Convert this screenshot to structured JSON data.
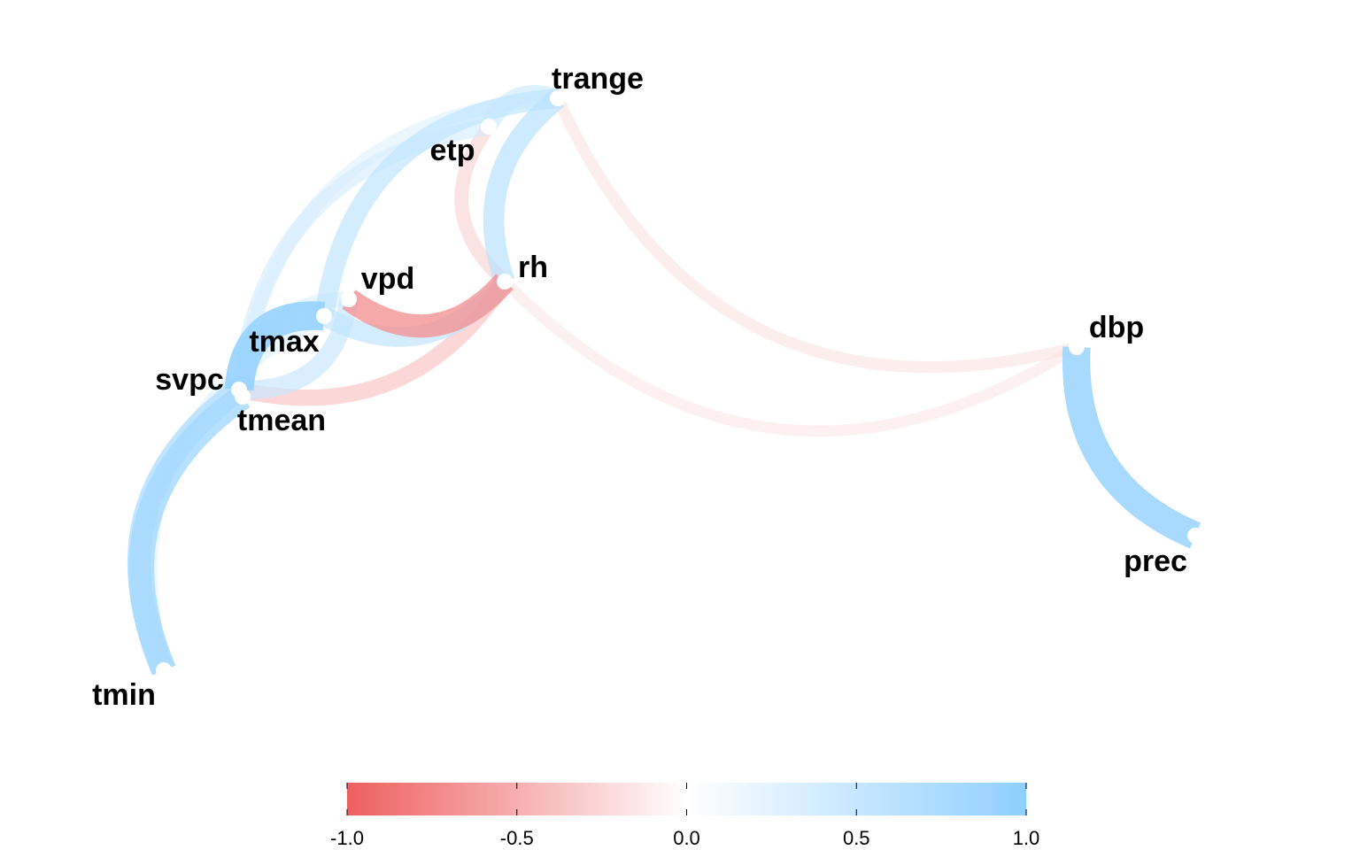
{
  "nodes": [
    {
      "id": "trange",
      "label": "trange"
    },
    {
      "id": "etp",
      "label": "etp"
    },
    {
      "id": "rh",
      "label": "rh"
    },
    {
      "id": "vpd",
      "label": "vpd"
    },
    {
      "id": "tmax",
      "label": "tmax"
    },
    {
      "id": "svpc",
      "label": "svpc"
    },
    {
      "id": "tmean",
      "label": "tmean"
    },
    {
      "id": "tmin",
      "label": "tmin"
    },
    {
      "id": "dbp",
      "label": "dbp"
    },
    {
      "id": "prec",
      "label": "prec"
    }
  ],
  "edges": [
    {
      "from": "trange",
      "to": "dbp",
      "r": -0.2
    },
    {
      "from": "rh",
      "to": "dbp",
      "r": -0.18
    },
    {
      "from": "trange",
      "to": "rh",
      "r": 0.6
    },
    {
      "from": "etp",
      "to": "rh",
      "r": -0.3
    },
    {
      "from": "trange",
      "to": "etp",
      "r": 0.45
    },
    {
      "from": "trange",
      "to": "tmax",
      "r": 0.55
    },
    {
      "from": "trange",
      "to": "svpc",
      "r": 0.3
    },
    {
      "from": "etp",
      "to": "svpc",
      "r": 0.4
    },
    {
      "from": "vpd",
      "to": "rh",
      "r": -0.7
    },
    {
      "from": "tmax",
      "to": "rh",
      "r": 0.55
    },
    {
      "from": "svpc",
      "to": "rh",
      "r": -0.4
    },
    {
      "from": "tmax",
      "to": "svpc",
      "r": 0.95
    },
    {
      "from": "svpc",
      "to": "tmin",
      "r": 0.7
    },
    {
      "from": "tmean",
      "to": "tmin",
      "r": 0.8
    },
    {
      "from": "tmax",
      "to": "tmin",
      "r": 0.3
    },
    {
      "from": "svpc",
      "to": "vpd",
      "r": 0.5
    },
    {
      "from": "tmean",
      "to": "vpd",
      "r": 0.35
    },
    {
      "from": "dbp",
      "to": "prec",
      "r": 0.9
    }
  ],
  "legend": {
    "type": "colorbar",
    "min": -1.0,
    "max": 1.0,
    "low_color": "#EE5F5F",
    "mid_color": "#FFFFFF",
    "high_color": "#8ECFFF",
    "ticks": [
      "-1.0",
      "-0.5",
      "0.0",
      "0.5",
      "1.0"
    ]
  }
}
